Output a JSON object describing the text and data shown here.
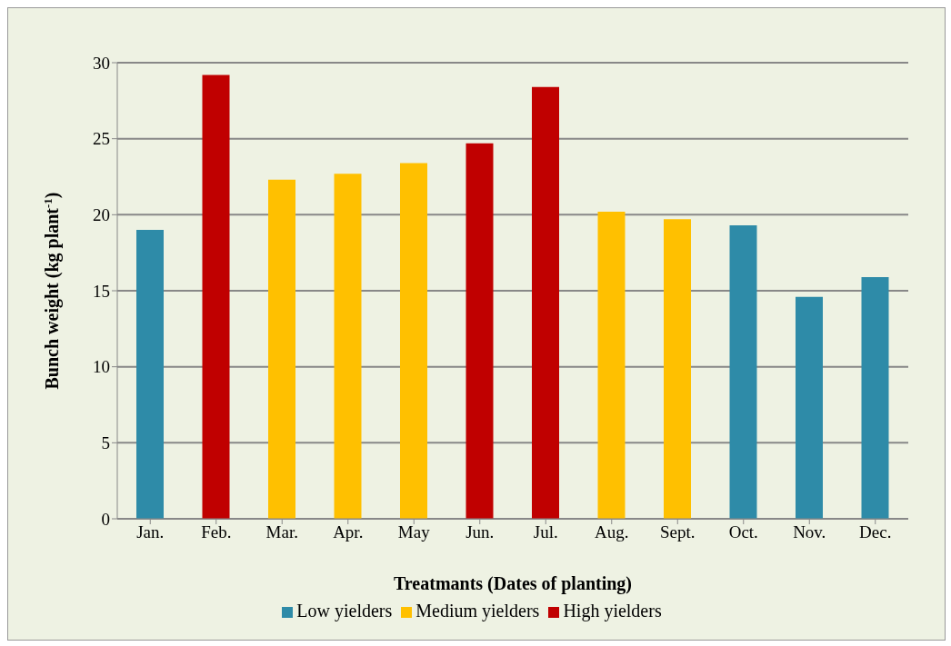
{
  "chart_data": {
    "type": "bar",
    "stacked": true,
    "xlabel": "Treatmants (Dates of planting)",
    "ylabel": "Bunch weight (kg  plant$^{-1}$)",
    "categories": [
      "Jan.",
      "Feb.",
      "Mar.",
      "Apr.",
      "May",
      "Jun.",
      "Jul.",
      "Aug.",
      "Sept.",
      "Oct.",
      "Nov.",
      "Dec."
    ],
    "series": [
      {
        "name": "Low yielders",
        "color": "#2e8ba8",
        "values": [
          19,
          null,
          null,
          null,
          null,
          null,
          null,
          null,
          null,
          19.3,
          14.6,
          15.9
        ]
      },
      {
        "name": "Medium yielders",
        "color": "#ffc000",
        "values": [
          null,
          null,
          22.3,
          22.7,
          23.4,
          null,
          null,
          20.2,
          19.7,
          null,
          null,
          null
        ]
      },
      {
        "name": "High yielders",
        "color": "#c00000",
        "values": [
          null,
          29.2,
          null,
          null,
          null,
          24.7,
          28.4,
          null,
          null,
          null,
          null,
          null
        ]
      }
    ],
    "ylim": [
      0,
      30
    ],
    "yticks": [
      0,
      5,
      10,
      15,
      20,
      25,
      30
    ],
    "grid": "y",
    "legend": "bottom"
  }
}
